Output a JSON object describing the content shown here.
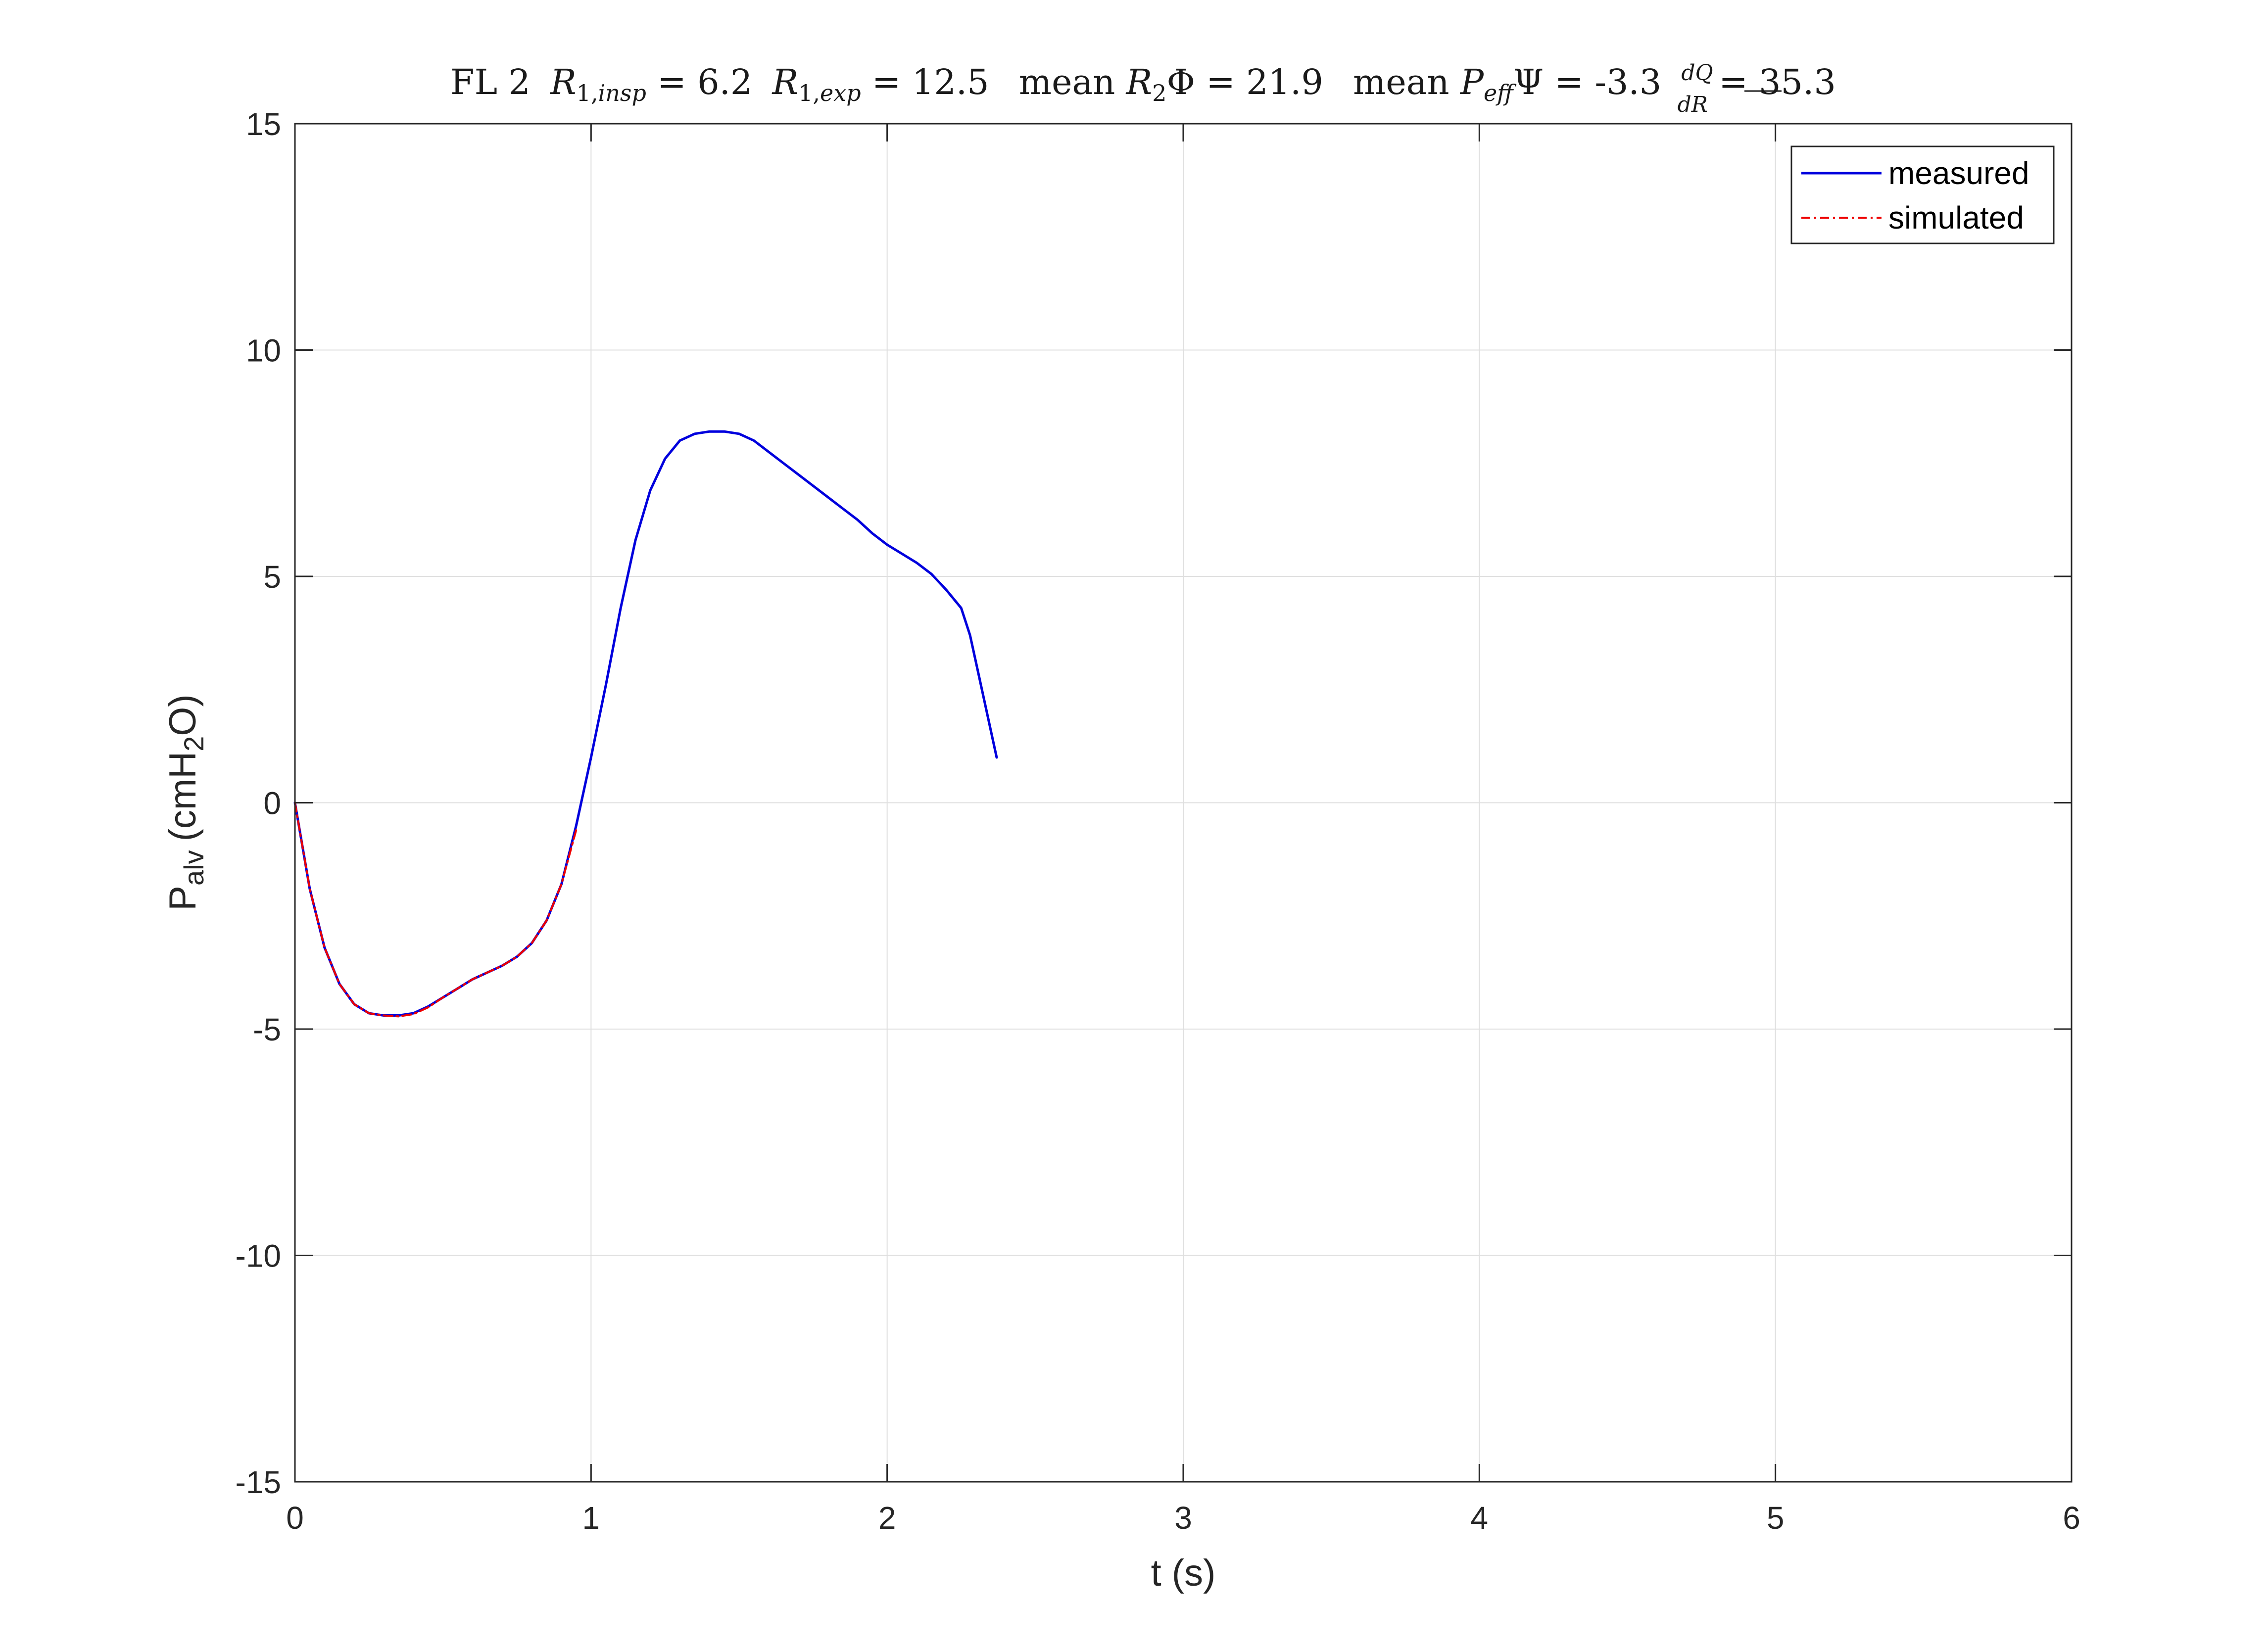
{
  "chart_data": {
    "type": "line",
    "title": {
      "prefix": "FL 2",
      "r1_insp_value": "6.2",
      "r1_exp_value": "12.5",
      "mean_r2phi_value": "21.9",
      "mean_peffpsi_value": "-3.3",
      "dqdr_value": "35.3"
    },
    "xlabel": "t (s)",
    "ylabel": {
      "main": "P",
      "subscript": "alv",
      "unit_prefix": "(cmH",
      "unit_subscript": "2",
      "unit_suffix": "O)"
    },
    "xlim": [
      0,
      6
    ],
    "ylim": [
      -15,
      15
    ],
    "xticks": [
      0,
      1,
      2,
      3,
      4,
      5,
      6
    ],
    "yticks": [
      -15,
      -10,
      -5,
      0,
      5,
      10,
      15
    ],
    "xtick_labels": [
      "0",
      "1",
      "2",
      "3",
      "4",
      "5",
      "6"
    ],
    "ytick_labels": [
      "-15",
      "-10",
      "-5",
      "0",
      "5",
      "10",
      "15"
    ],
    "grid": true,
    "legend_position": "top-right",
    "series": [
      {
        "name": "measured",
        "color": "#0000dd",
        "style": "solid",
        "x": [
          0,
          0.05,
          0.1,
          0.15,
          0.2,
          0.25,
          0.3,
          0.35,
          0.4,
          0.45,
          0.5,
          0.55,
          0.6,
          0.65,
          0.7,
          0.75,
          0.8,
          0.85,
          0.9,
          0.95,
          1.0,
          1.05,
          1.1,
          1.15,
          1.2,
          1.25,
          1.3,
          1.35,
          1.4,
          1.45,
          1.5,
          1.55,
          1.6,
          1.65,
          1.7,
          1.75,
          1.8,
          1.85,
          1.9,
          1.95,
          2.0,
          2.05,
          2.1,
          2.15,
          2.2,
          2.25,
          2.28,
          2.31,
          2.34,
          2.37
        ],
        "y": [
          0,
          -1.9,
          -3.2,
          -4.0,
          -4.45,
          -4.65,
          -4.7,
          -4.7,
          -4.65,
          -4.5,
          -4.3,
          -4.1,
          -3.9,
          -3.75,
          -3.6,
          -3.4,
          -3.1,
          -2.6,
          -1.8,
          -0.5,
          1.0,
          2.6,
          4.3,
          5.8,
          6.9,
          7.6,
          8.0,
          8.15,
          8.2,
          8.2,
          8.15,
          8.0,
          7.75,
          7.5,
          7.25,
          7.0,
          6.75,
          6.5,
          6.25,
          5.95,
          5.7,
          5.5,
          5.3,
          5.05,
          4.7,
          4.3,
          3.7,
          2.8,
          1.9,
          1.0
        ]
      },
      {
        "name": "simulated",
        "color": "#ee0000",
        "style": "dashdot",
        "x": [
          0,
          0.05,
          0.1,
          0.15,
          0.2,
          0.25,
          0.3,
          0.35,
          0.4,
          0.45,
          0.5,
          0.55,
          0.6,
          0.65,
          0.7,
          0.75,
          0.8,
          0.85,
          0.9,
          0.95
        ],
        "y": [
          0,
          -1.9,
          -3.2,
          -4.0,
          -4.45,
          -4.65,
          -4.7,
          -4.72,
          -4.67,
          -4.52,
          -4.3,
          -4.1,
          -3.9,
          -3.75,
          -3.6,
          -3.4,
          -3.1,
          -2.6,
          -1.8,
          -0.6
        ]
      }
    ]
  }
}
